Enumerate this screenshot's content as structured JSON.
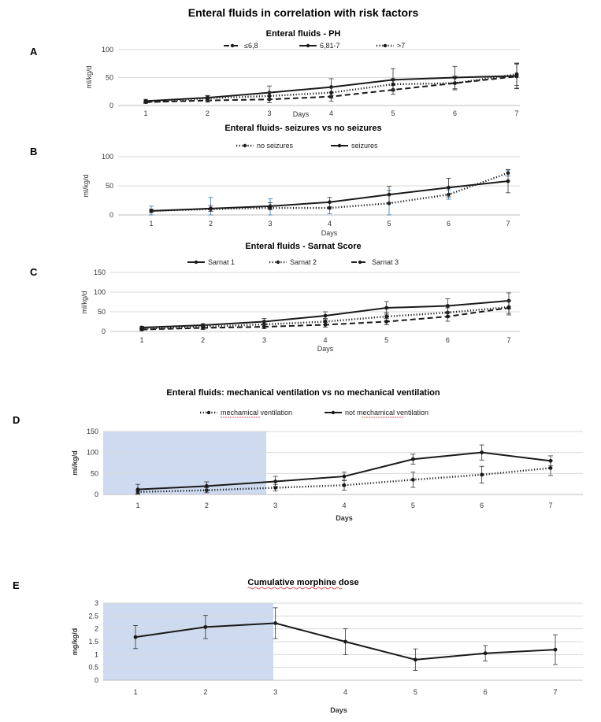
{
  "figure_title": "Enteral fluids in correlation with risk factors",
  "colors": {
    "line": "#1a1a1a",
    "grid": "#d9d9d9",
    "highlight": "#b4c6e7",
    "underline": "#d23a3a",
    "blue_errbar": "#2e75b6"
  },
  "chart_data": [
    {
      "panel": "A",
      "type": "line",
      "title": "Enteral fluids - PH",
      "xlabel": "Days",
      "ylabel": "ml/kg/d",
      "categories": [
        "1",
        "2",
        "3",
        "4",
        "5",
        "6",
        "7"
      ],
      "ylim": [
        0,
        100
      ],
      "yticks": [
        0,
        50,
        100
      ],
      "series": [
        {
          "name": "≤6,8",
          "style": "dash",
          "values": [
            6,
            9,
            11,
            16,
            28,
            40,
            52
          ],
          "err": [
            2,
            3,
            6,
            8,
            8,
            12,
            22
          ]
        },
        {
          "name": "6,81-7",
          "style": "solid",
          "values": [
            8,
            14,
            23,
            33,
            46,
            50,
            53
          ],
          "err": [
            3,
            4,
            12,
            15,
            20,
            20,
            22
          ]
        },
        {
          "name": ">7",
          "style": "dot",
          "values": [
            6,
            13,
            17,
            23,
            38,
            40,
            56
          ],
          "err": [
            2,
            4,
            6,
            10,
            10,
            12,
            20
          ]
        }
      ]
    },
    {
      "panel": "B",
      "type": "line",
      "title": "Enteral fluids- seizures vs no seizures",
      "xlabel": "Days",
      "ylabel": "ml/kg/d",
      "categories": [
        "1",
        "2",
        "3",
        "4",
        "5",
        "6",
        "7"
      ],
      "ylim": [
        0,
        100
      ],
      "yticks": [
        0,
        50,
        100
      ],
      "series": [
        {
          "name": "no seizures",
          "style": "dot",
          "values": [
            7,
            10,
            12,
            12,
            20,
            35,
            72
          ],
          "err": [
            8,
            20,
            16,
            10,
            22,
            8,
            5
          ]
        },
        {
          "name": "seizures",
          "style": "solid",
          "values": [
            7,
            11,
            15,
            22,
            35,
            47,
            58
          ],
          "err": [
            3,
            5,
            6,
            8,
            14,
            16,
            20
          ]
        }
      ]
    },
    {
      "panel": "C",
      "type": "line",
      "title": "Enteral fluids - Sarnat Score",
      "xlabel": "Days",
      "ylabel": "ml/kg/d",
      "categories": [
        "1",
        "2",
        "3",
        "4",
        "5",
        "6",
        "7"
      ],
      "ylim": [
        0,
        150
      ],
      "yticks": [
        0,
        50,
        100,
        150
      ],
      "series": [
        {
          "name": "Sarnat 1",
          "style": "solid",
          "values": [
            10,
            16,
            25,
            40,
            60,
            65,
            78
          ],
          "err": [
            3,
            4,
            8,
            10,
            16,
            18,
            20
          ]
        },
        {
          "name": "Sarnat 2",
          "style": "dot",
          "values": [
            7,
            12,
            18,
            25,
            38,
            48,
            62
          ],
          "err": [
            3,
            4,
            6,
            8,
            10,
            12,
            16
          ]
        },
        {
          "name": "Sarnat 3",
          "style": "dash",
          "values": [
            5,
            9,
            12,
            17,
            25,
            38,
            60
          ],
          "err": [
            2,
            4,
            5,
            6,
            8,
            12,
            18
          ]
        }
      ]
    },
    {
      "panel": "D",
      "type": "line",
      "title": "Enteral  fluids: mechanical ventilation vs no mechanical ventilation",
      "xlabel": "Days",
      "ylabel": "ml/kg/d",
      "categories": [
        "1",
        "2",
        "3",
        "4",
        "5",
        "6",
        "7"
      ],
      "ylim": [
        0,
        150
      ],
      "yticks": [
        0,
        50,
        100,
        150
      ],
      "shaded_days": [
        1,
        3
      ],
      "series": [
        {
          "name": "mechamical ventilation",
          "style": "dot",
          "values": [
            6,
            10,
            16,
            22,
            35,
            47,
            63
          ],
          "err": [
            4,
            6,
            8,
            12,
            18,
            20,
            18
          ]
        },
        {
          "name": "not mechamical ventilation",
          "style": "solid",
          "values": [
            12,
            20,
            31,
            43,
            84,
            100,
            80
          ],
          "err": [
            12,
            10,
            12,
            10,
            12,
            18,
            12
          ]
        }
      ]
    },
    {
      "panel": "E",
      "type": "line",
      "title": "Cumulative morphine dose",
      "xlabel": "Days",
      "ylabel": "mg/kg/d",
      "categories": [
        "1",
        "2",
        "3",
        "4",
        "5",
        "6",
        "7"
      ],
      "ylim": [
        0,
        3
      ],
      "yticks": [
        0,
        0.5,
        1,
        1.5,
        2,
        2.5,
        3
      ],
      "shaded_days": [
        1,
        3
      ],
      "series": [
        {
          "name": "Cumulative morphine dose",
          "style": "solid",
          "values": [
            1.68,
            2.07,
            2.22,
            1.5,
            0.8,
            1.05,
            1.19
          ],
          "err": [
            0.45,
            0.45,
            0.6,
            0.5,
            0.42,
            0.3,
            0.58
          ]
        }
      ]
    }
  ]
}
